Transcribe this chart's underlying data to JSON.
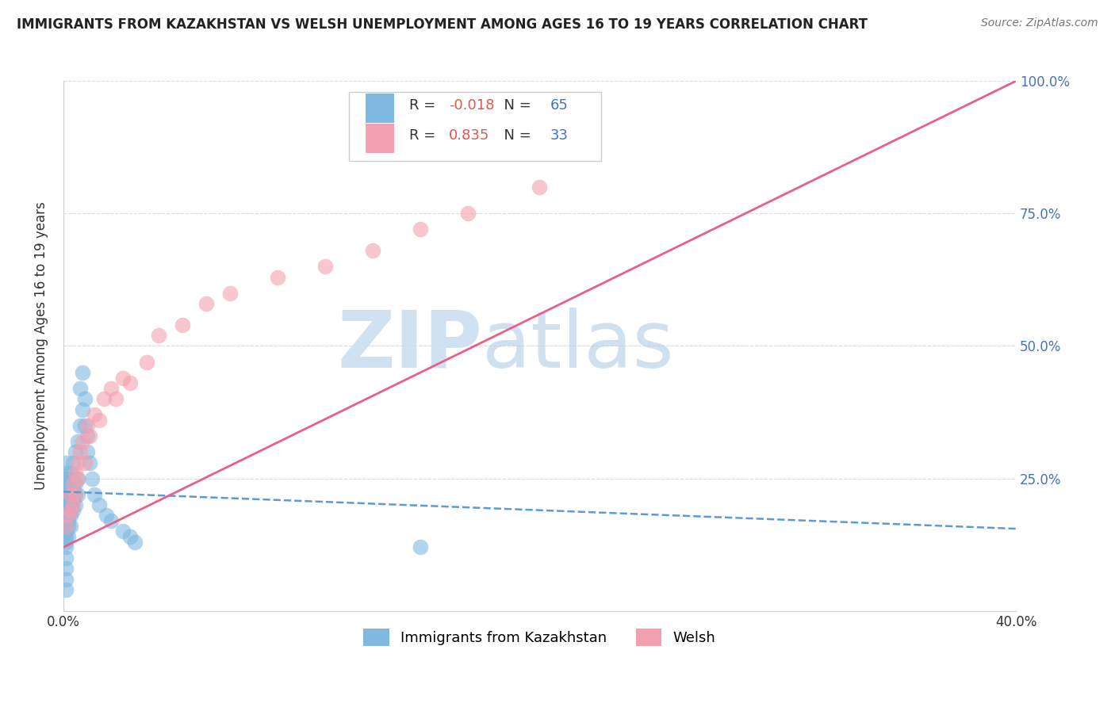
{
  "title": "IMMIGRANTS FROM KAZAKHSTAN VS WELSH UNEMPLOYMENT AMONG AGES 16 TO 19 YEARS CORRELATION CHART",
  "source": "Source: ZipAtlas.com",
  "ylabel": "Unemployment Among Ages 16 to 19 years",
  "watermark_zip": "ZIP",
  "watermark_atlas": "atlas",
  "legend_label1": "Immigrants from Kazakhstan",
  "legend_label2": "Welsh",
  "R1": -0.018,
  "N1": 65,
  "R2": 0.835,
  "N2": 33,
  "blue_color": "#7fb8e0",
  "pink_color": "#f4a0b0",
  "blue_line_color": "#5b9bd5",
  "pink_line_color": "#e8608a",
  "xlim": [
    0.0,
    0.4
  ],
  "ylim": [
    0.0,
    1.0
  ],
  "blue_x": [
    0.001,
    0.001,
    0.001,
    0.001,
    0.001,
    0.001,
    0.001,
    0.001,
    0.001,
    0.001,
    0.001,
    0.001,
    0.001,
    0.001,
    0.001,
    0.001,
    0.001,
    0.001,
    0.001,
    0.001,
    0.002,
    0.002,
    0.002,
    0.002,
    0.002,
    0.002,
    0.002,
    0.002,
    0.002,
    0.003,
    0.003,
    0.003,
    0.003,
    0.003,
    0.003,
    0.004,
    0.004,
    0.004,
    0.004,
    0.004,
    0.005,
    0.005,
    0.005,
    0.005,
    0.006,
    0.006,
    0.006,
    0.007,
    0.007,
    0.008,
    0.008,
    0.009,
    0.009,
    0.01,
    0.01,
    0.011,
    0.012,
    0.013,
    0.015,
    0.018,
    0.02,
    0.025,
    0.028,
    0.03,
    0.15
  ],
  "blue_y": [
    0.14,
    0.16,
    0.18,
    0.2,
    0.22,
    0.24,
    0.26,
    0.28,
    0.1,
    0.08,
    0.06,
    0.04,
    0.13,
    0.17,
    0.19,
    0.21,
    0.23,
    0.25,
    0.12,
    0.15,
    0.17,
    0.19,
    0.21,
    0.23,
    0.25,
    0.14,
    0.16,
    0.18,
    0.2,
    0.18,
    0.2,
    0.22,
    0.24,
    0.16,
    0.26,
    0.19,
    0.21,
    0.23,
    0.25,
    0.28,
    0.2,
    0.22,
    0.24,
    0.3,
    0.22,
    0.25,
    0.32,
    0.35,
    0.42,
    0.38,
    0.45,
    0.35,
    0.4,
    0.3,
    0.33,
    0.28,
    0.25,
    0.22,
    0.2,
    0.18,
    0.17,
    0.15,
    0.14,
    0.13,
    0.12
  ],
  "pink_x": [
    0.001,
    0.002,
    0.003,
    0.003,
    0.004,
    0.004,
    0.005,
    0.005,
    0.006,
    0.006,
    0.007,
    0.008,
    0.009,
    0.01,
    0.011,
    0.013,
    0.015,
    0.017,
    0.02,
    0.022,
    0.025,
    0.028,
    0.035,
    0.04,
    0.05,
    0.06,
    0.07,
    0.09,
    0.11,
    0.13,
    0.15,
    0.17,
    0.2
  ],
  "pink_y": [
    0.16,
    0.18,
    0.19,
    0.22,
    0.2,
    0.24,
    0.22,
    0.26,
    0.25,
    0.28,
    0.3,
    0.32,
    0.28,
    0.35,
    0.33,
    0.37,
    0.36,
    0.4,
    0.42,
    0.4,
    0.44,
    0.43,
    0.47,
    0.52,
    0.54,
    0.58,
    0.6,
    0.63,
    0.65,
    0.68,
    0.72,
    0.75,
    0.8
  ],
  "pink_line_x0": 0.0,
  "pink_line_y0": 0.12,
  "pink_line_x1": 0.4,
  "pink_line_y1": 1.0,
  "blue_line_x0": 0.0,
  "blue_line_y0": 0.225,
  "blue_line_x1": 0.4,
  "blue_line_y1": 0.155
}
